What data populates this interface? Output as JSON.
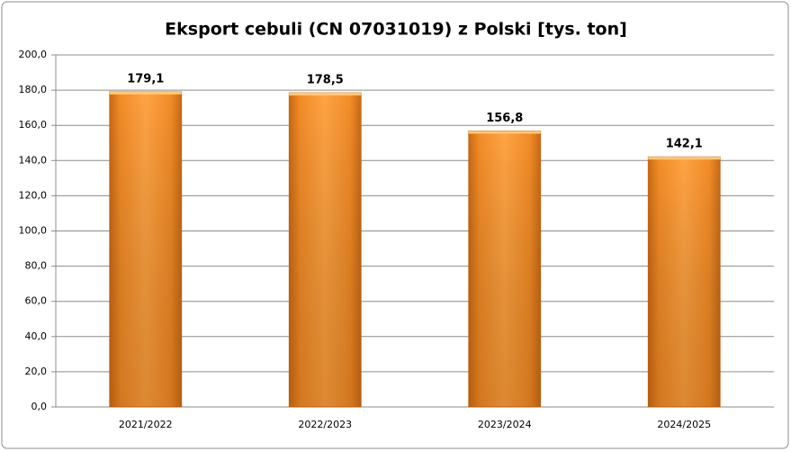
{
  "chart_data": {
    "type": "bar",
    "title": "Eksport cebuli (CN 07031019) z Polski [tys. ton]",
    "categories": [
      "2021/2022",
      "2022/2023",
      "2023/2024",
      "2024/2025"
    ],
    "values": [
      179.1,
      178.5,
      156.8,
      142.1
    ],
    "value_labels": [
      "179,1",
      "178,5",
      "156,8",
      "142,1"
    ],
    "color": "#f7962e",
    "ylim": [
      0,
      200
    ],
    "yticks": [
      {
        "value": 0,
        "label": "0,0"
      },
      {
        "value": 20,
        "label": "20,0"
      },
      {
        "value": 40,
        "label": "40,0"
      },
      {
        "value": 60,
        "label": "60,0"
      },
      {
        "value": 80,
        "label": "80,0"
      },
      {
        "value": 100,
        "label": "100,0"
      },
      {
        "value": 120,
        "label": "120,0"
      },
      {
        "value": 140,
        "label": "140,0"
      },
      {
        "value": 160,
        "label": "160,0"
      },
      {
        "value": 180,
        "label": "180,0"
      },
      {
        "value": 200,
        "label": "200,0"
      }
    ],
    "grid": true
  }
}
